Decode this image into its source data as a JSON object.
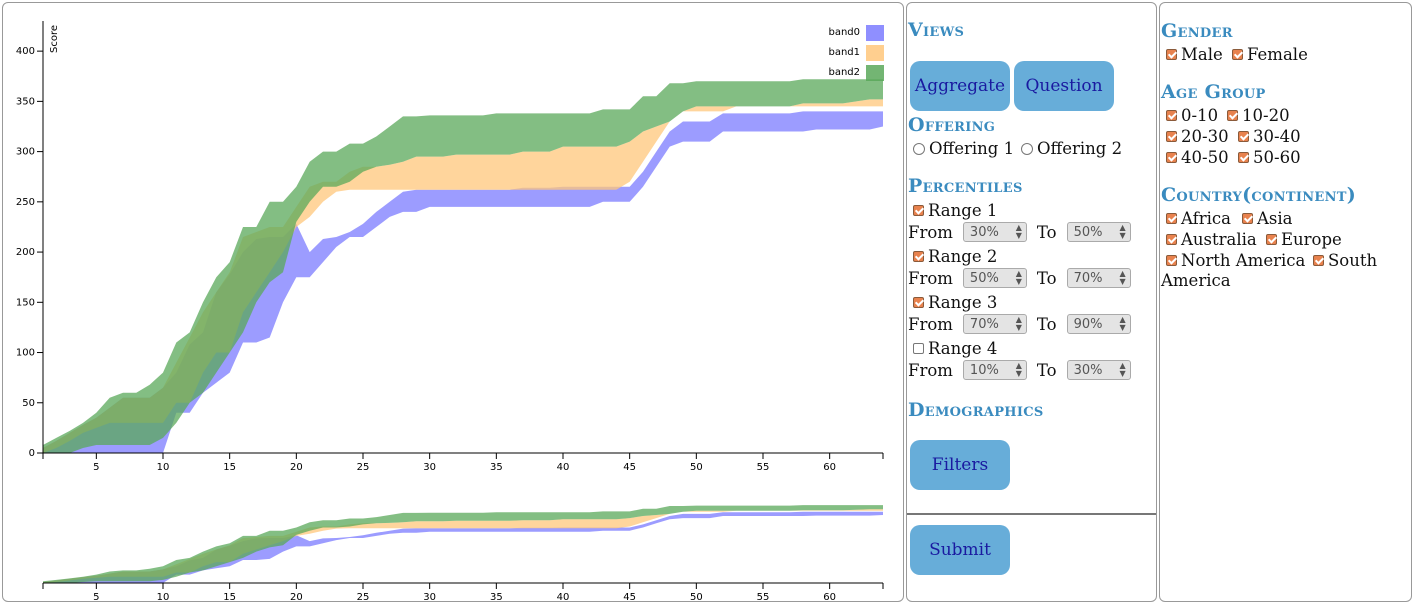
{
  "chart_data": {
    "type": "area",
    "ylabel": "Score",
    "xlim": [
      1,
      64
    ],
    "ylim": [
      0,
      430
    ],
    "x_ticks": [
      5,
      10,
      15,
      20,
      25,
      30,
      35,
      40,
      45,
      50,
      55,
      60
    ],
    "y_ticks": [
      0,
      50,
      100,
      150,
      200,
      250,
      300,
      350,
      400
    ],
    "legend_position": "top-right",
    "x": [
      1,
      2,
      3,
      4,
      5,
      6,
      7,
      8,
      9,
      10,
      11,
      12,
      13,
      14,
      15,
      16,
      17,
      18,
      19,
      20,
      21,
      22,
      23,
      24,
      25,
      26,
      27,
      28,
      29,
      30,
      31,
      32,
      33,
      34,
      35,
      36,
      37,
      38,
      39,
      40,
      41,
      42,
      43,
      44,
      45,
      46,
      47,
      48,
      49,
      50,
      51,
      52,
      53,
      54,
      55,
      56,
      57,
      58,
      59,
      60,
      61,
      62,
      63,
      64
    ],
    "series": [
      {
        "name": "band0",
        "color": "#7b7bff",
        "lower": [
          0,
          0,
          0,
          0,
          0,
          0,
          0,
          0,
          0,
          0,
          40,
          40,
          60,
          70,
          80,
          110,
          110,
          115,
          150,
          175,
          175,
          190,
          205,
          215,
          215,
          225,
          235,
          240,
          240,
          245,
          245,
          245,
          245,
          245,
          245,
          245,
          245,
          245,
          245,
          245,
          245,
          245,
          250,
          250,
          250,
          265,
          285,
          305,
          310,
          310,
          310,
          320,
          320,
          320,
          320,
          320,
          320,
          320,
          322,
          322,
          322,
          322,
          322,
          325
        ],
        "upper": [
          5,
          12,
          20,
          28,
          35,
          45,
          55,
          55,
          55,
          65,
          80,
          108,
          120,
          160,
          178,
          200,
          213,
          215,
          215,
          228,
          200,
          213,
          215,
          220,
          228,
          240,
          250,
          260,
          262,
          262,
          262,
          262,
          262,
          262,
          262,
          262,
          264,
          264,
          264,
          265,
          265,
          265,
          265,
          265,
          265,
          280,
          300,
          320,
          330,
          330,
          330,
          338,
          338,
          338,
          338,
          338,
          338,
          340,
          340,
          340,
          340,
          340,
          340,
          340
        ]
      },
      {
        "name": "band1",
        "color": "#ffc77b",
        "lower": [
          0,
          5,
          12,
          20,
          25,
          30,
          30,
          30,
          30,
          30,
          50,
          50,
          80,
          100,
          100,
          140,
          160,
          180,
          200,
          225,
          235,
          250,
          260,
          262,
          262,
          262,
          262,
          262,
          262,
          262,
          262,
          262,
          262,
          262,
          262,
          262,
          262,
          262,
          262,
          262,
          262,
          262,
          262,
          262,
          270,
          290,
          310,
          330,
          340,
          340,
          340,
          340,
          345,
          345,
          345,
          345,
          345,
          345,
          345,
          345,
          345,
          345,
          345,
          345
        ],
        "upper": [
          5,
          12,
          20,
          28,
          35,
          45,
          55,
          55,
          55,
          65,
          90,
          115,
          140,
          160,
          180,
          215,
          220,
          225,
          225,
          245,
          265,
          270,
          270,
          280,
          285,
          285,
          287,
          290,
          295,
          295,
          295,
          297,
          297,
          297,
          297,
          297,
          300,
          300,
          300,
          305,
          305,
          305,
          305,
          305,
          310,
          320,
          325,
          330,
          340,
          345,
          345,
          345,
          345,
          345,
          345,
          345,
          345,
          348,
          348,
          348,
          348,
          350,
          352,
          352
        ]
      },
      {
        "name": "band2",
        "color": "#5aa85a",
        "lower": [
          0,
          0,
          0,
          5,
          8,
          8,
          8,
          8,
          8,
          15,
          30,
          50,
          60,
          80,
          100,
          120,
          150,
          170,
          180,
          230,
          250,
          265,
          265,
          270,
          280,
          285,
          287,
          290,
          295,
          295,
          295,
          297,
          297,
          297,
          297,
          297,
          300,
          300,
          300,
          305,
          305,
          305,
          305,
          305,
          310,
          320,
          325,
          330,
          340,
          345,
          345,
          345,
          345,
          345,
          345,
          345,
          345,
          348,
          348,
          348,
          348,
          350,
          352,
          352
        ],
        "upper": [
          8,
          15,
          22,
          30,
          40,
          55,
          60,
          60,
          68,
          80,
          110,
          120,
          150,
          175,
          190,
          225,
          225,
          250,
          250,
          265,
          290,
          300,
          300,
          308,
          308,
          315,
          325,
          335,
          335,
          336,
          336,
          336,
          336,
          336,
          338,
          338,
          338,
          338,
          338,
          338,
          338,
          338,
          342,
          342,
          342,
          355,
          355,
          368,
          368,
          370,
          370,
          370,
          370,
          370,
          370,
          370,
          370,
          372,
          372,
          372,
          372,
          372,
          372,
          372
        ]
      }
    ]
  },
  "controls": {
    "views_title": "Views",
    "aggregate_button": "Aggregate",
    "question_button": "Question",
    "offering_title": "Offering",
    "offering_1": "Offering 1",
    "offering_2": "Offering 2",
    "percentiles_title": "Percentiles",
    "from_label": "From",
    "to_label": "To",
    "ranges": [
      {
        "label": "Range 1",
        "checked": true,
        "from": "30%",
        "to": "50%"
      },
      {
        "label": "Range 2",
        "checked": true,
        "from": "50%",
        "to": "70%"
      },
      {
        "label": "Range 3",
        "checked": true,
        "from": "70%",
        "to": "90%"
      },
      {
        "label": "Range 4",
        "checked": false,
        "from": "10%",
        "to": "30%"
      }
    ],
    "demographics_title": "Demographics",
    "filters_button": "Filters",
    "submit_button": "Submit"
  },
  "filters": {
    "gender_title": "Gender",
    "gender": [
      "Male",
      "Female"
    ],
    "age_title": "Age Group",
    "age": [
      "0-10",
      "10-20",
      "20-30",
      "30-40",
      "40-50",
      "50-60"
    ],
    "country_title": "Country(continent)",
    "country": [
      "Africa",
      "Asia",
      "Australia",
      "Europe",
      "North America",
      "South",
      "America"
    ]
  }
}
